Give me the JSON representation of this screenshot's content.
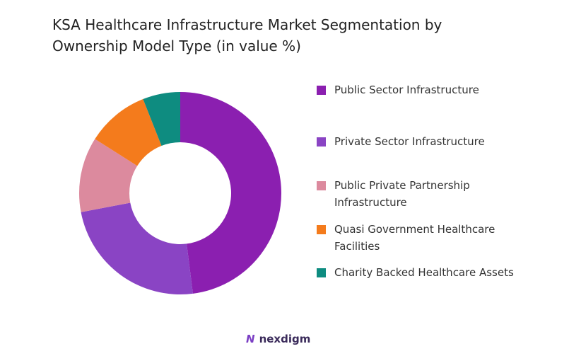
{
  "chart_data": {
    "type": "donut",
    "title": "KSA Healthcare Infrastructure Market Segmentation by Ownership Model Type (in value %)",
    "categories": [
      "Public Sector Infrastructure",
      "Private Sector Infrastructure",
      "Public Private Partnership Infrastructure",
      "Quasi Government Healthcare Facilities",
      "Charity Backed Healthcare Assets"
    ],
    "values": [
      48,
      24,
      12,
      10,
      6
    ],
    "colors": [
      "#8b1fb0",
      "#8a44c4",
      "#dc8a9e",
      "#f47b1c",
      "#0e8c80"
    ]
  },
  "brand": "nexdigm"
}
